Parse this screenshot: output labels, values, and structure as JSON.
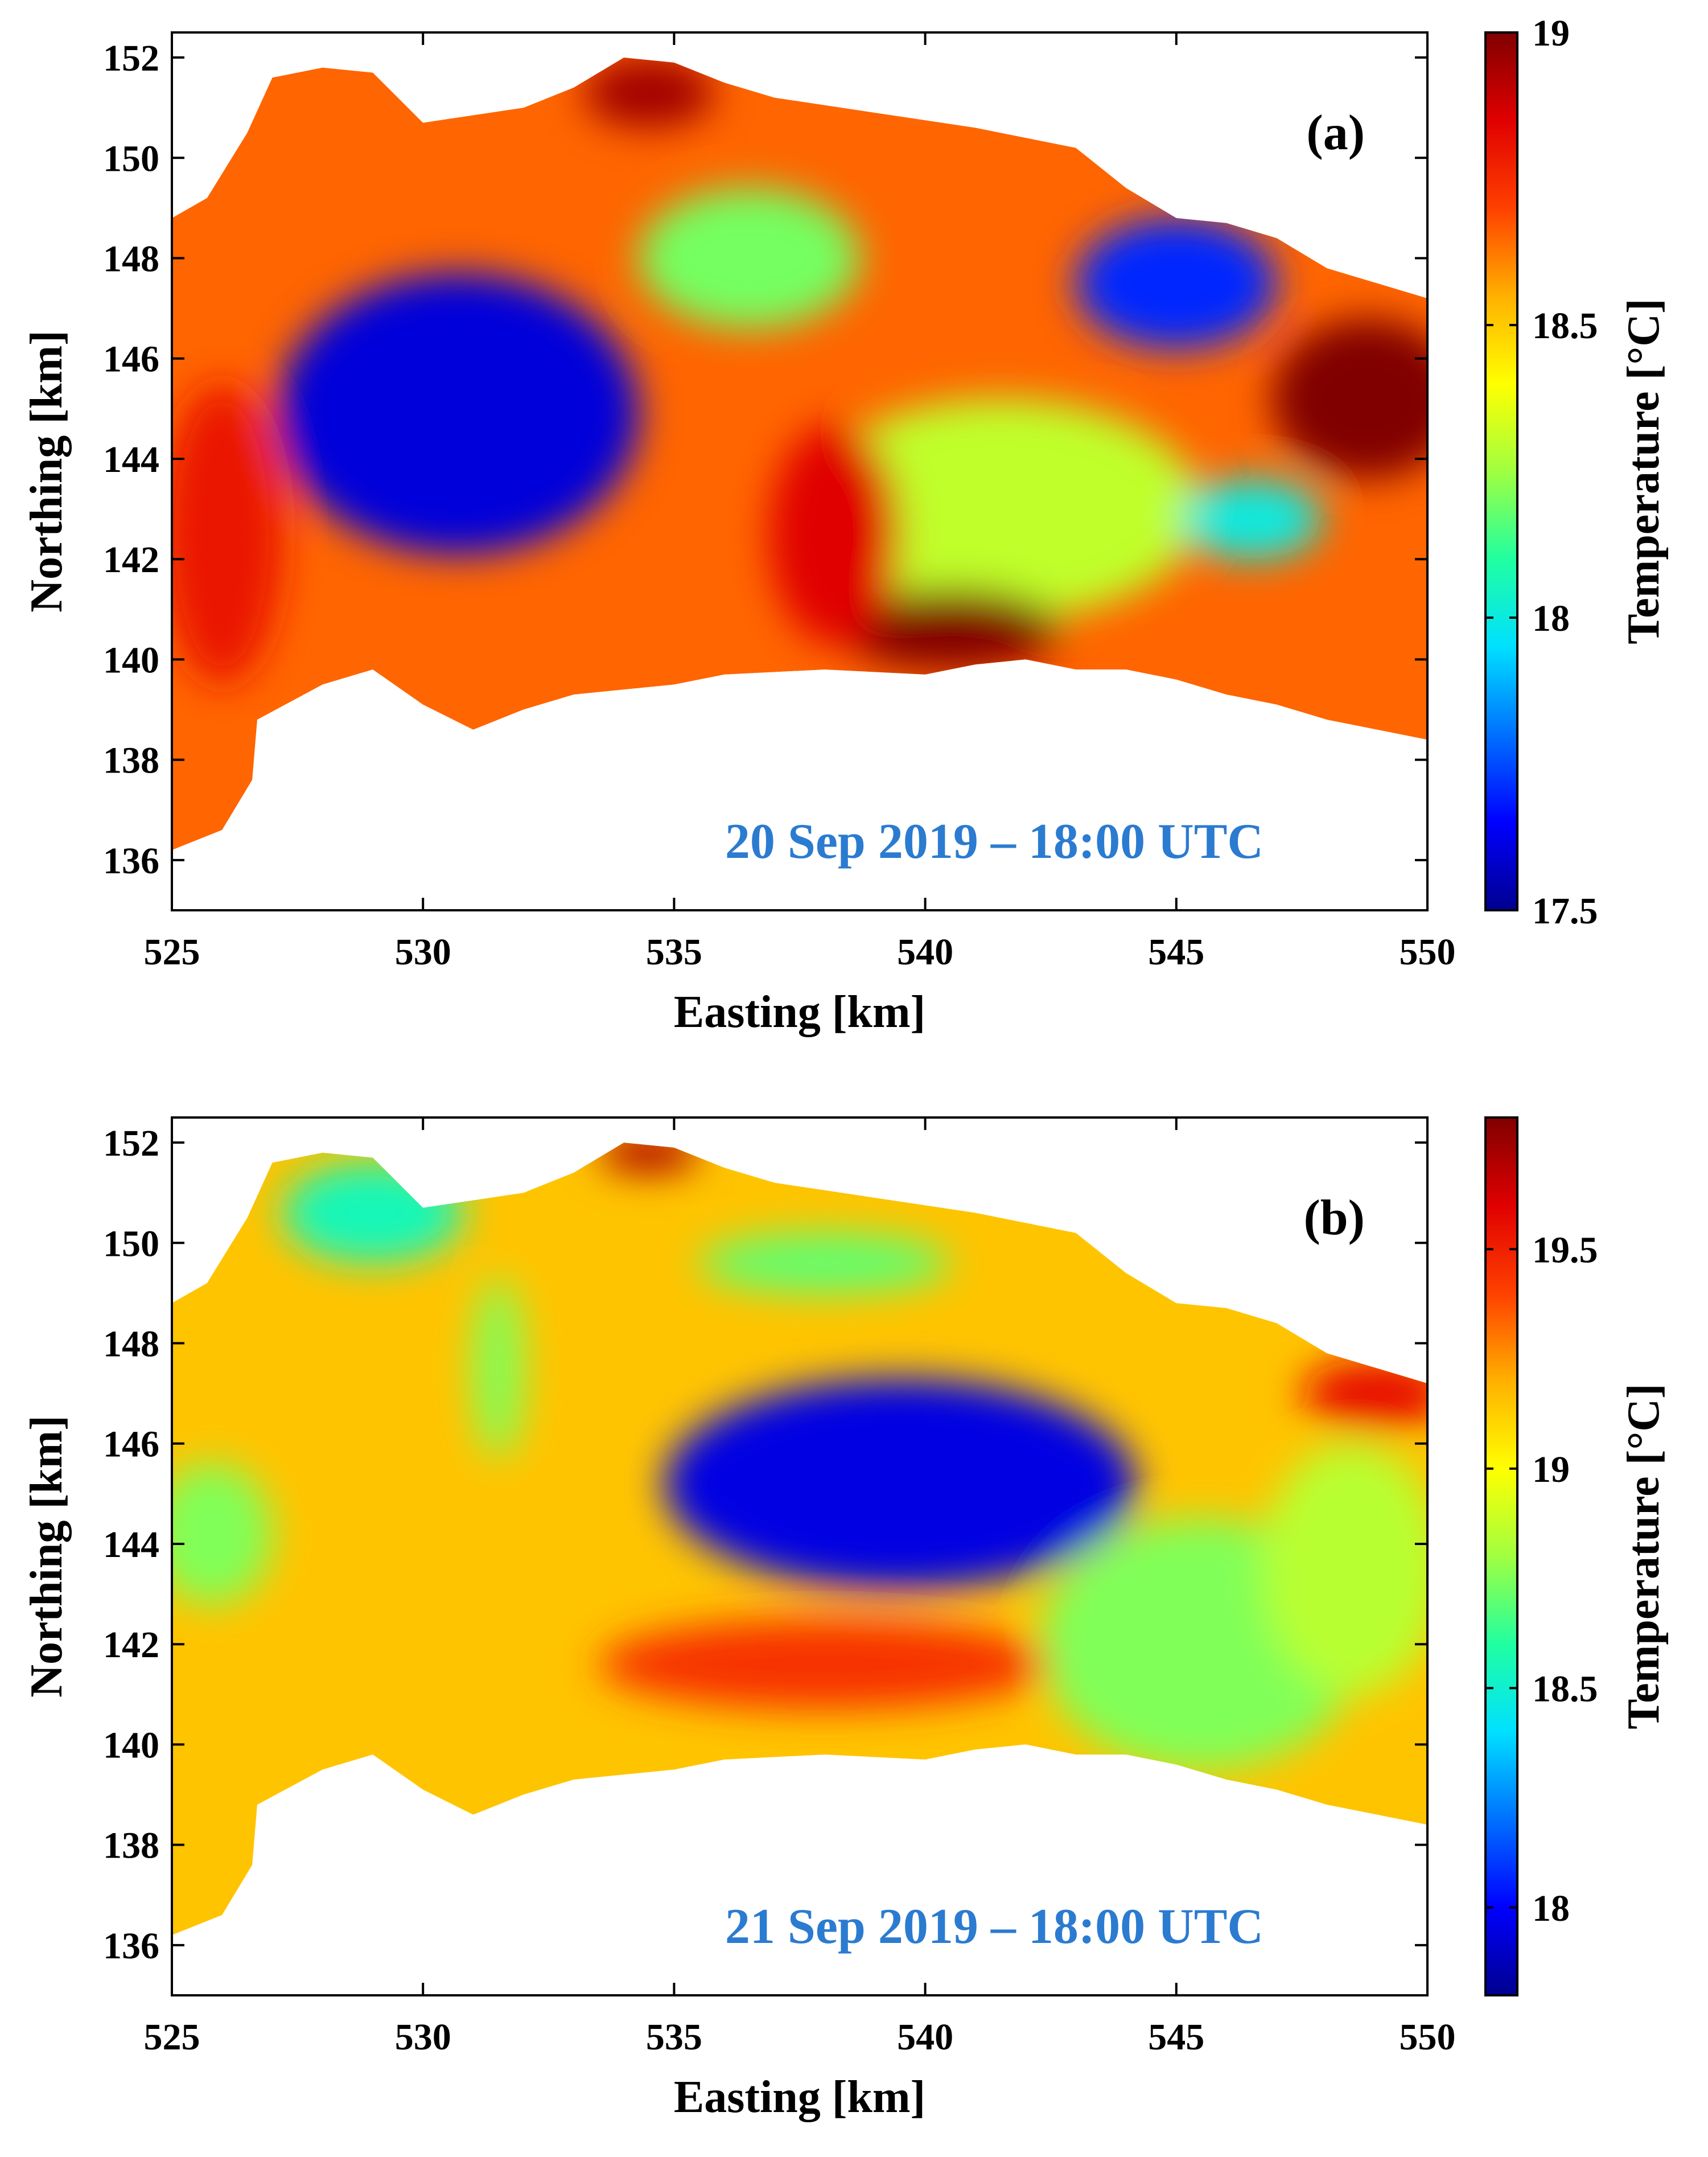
{
  "figure": {
    "background": "#ffffff"
  },
  "colormap": [
    "#00008f",
    "#0000ff",
    "#0070ff",
    "#00e0ff",
    "#20ffa0",
    "#a0ff40",
    "#ffff00",
    "#ffb000",
    "#ff4000",
    "#e00000",
    "#800000"
  ],
  "chart_data": [
    {
      "type": "heatmap",
      "panel_label": "(a)",
      "timestamp": "20 Sep 2019 – 18:00 UTC",
      "timestamp_color": "#2b7bd0",
      "xlabel": "Easting [km]",
      "ylabel": "Northing [km]",
      "colorbar_label": "Temperature [°C]",
      "xlim": [
        525,
        550
      ],
      "ylim": [
        135,
        152.5
      ],
      "xticks": [
        525,
        530,
        535,
        540,
        545,
        550
      ],
      "yticks": [
        136,
        138,
        140,
        142,
        144,
        146,
        148,
        150,
        152
      ],
      "clim": [
        17.5,
        19
      ],
      "cticks": [
        17.5,
        18,
        18.5,
        19
      ],
      "cticklabels": [
        "17.5",
        "18",
        "18.5",
        "19"
      ],
      "domain_outline": [
        [
          525,
          136.2
        ],
        [
          526,
          136.6
        ],
        [
          526.6,
          137.6
        ],
        [
          526.7,
          138.8
        ],
        [
          528,
          139.5
        ],
        [
          529,
          139.8
        ],
        [
          530,
          139.1
        ],
        [
          531,
          138.6
        ],
        [
          532,
          139
        ],
        [
          533,
          139.3
        ],
        [
          535,
          139.5
        ],
        [
          536,
          139.7
        ],
        [
          538,
          139.8
        ],
        [
          540,
          139.7
        ],
        [
          541,
          139.9
        ],
        [
          542,
          140
        ],
        [
          543,
          139.8
        ],
        [
          544,
          139.8
        ],
        [
          545,
          139.6
        ],
        [
          546,
          139.3
        ],
        [
          547,
          139.1
        ],
        [
          548,
          138.8
        ],
        [
          549,
          138.6
        ],
        [
          550,
          138.4
        ],
        [
          550,
          147.2
        ],
        [
          548,
          147.8
        ],
        [
          547,
          148.4
        ],
        [
          546,
          148.7
        ],
        [
          545,
          148.8
        ],
        [
          544,
          149.4
        ],
        [
          543,
          150.2
        ],
        [
          541,
          150.6
        ],
        [
          539,
          150.9
        ],
        [
          537,
          151.2
        ],
        [
          536,
          151.5
        ],
        [
          535,
          151.9
        ],
        [
          534,
          152
        ],
        [
          533,
          151.4
        ],
        [
          532,
          151
        ],
        [
          530,
          150.7
        ],
        [
          529.5,
          151.2
        ],
        [
          529,
          151.7
        ],
        [
          528,
          151.8
        ],
        [
          527,
          151.6
        ],
        [
          526.5,
          150.5
        ],
        [
          525.7,
          149.2
        ],
        [
          525,
          148.8
        ]
      ],
      "background_value": 18.65,
      "features": [
        {
          "x": 530.7,
          "y": 144.9,
          "rx": 3.6,
          "ry": 2.8,
          "value": 17.6
        },
        {
          "x": 536.5,
          "y": 148,
          "rx": 2.2,
          "ry": 1.4,
          "value": 18.2
        },
        {
          "x": 541.5,
          "y": 143,
          "rx": 4,
          "ry": 2.2,
          "value": 18.3
        },
        {
          "x": 545,
          "y": 147.5,
          "rx": 2,
          "ry": 1.3,
          "value": 17.7
        },
        {
          "x": 548.8,
          "y": 145.2,
          "rx": 1.9,
          "ry": 1.6,
          "value": 19
        },
        {
          "x": 540.5,
          "y": 140.6,
          "rx": 2.2,
          "ry": 0.8,
          "value": 19
        },
        {
          "x": 534.5,
          "y": 151.3,
          "rx": 1.3,
          "ry": 0.7,
          "value": 18.95
        },
        {
          "x": 538.2,
          "y": 142.5,
          "rx": 1.3,
          "ry": 2.2,
          "value": 18.85
        },
        {
          "x": 526,
          "y": 142.5,
          "rx": 1.2,
          "ry": 3,
          "value": 18.8
        },
        {
          "x": 546.5,
          "y": 142.8,
          "rx": 1.4,
          "ry": 0.8,
          "value": 18
        }
      ]
    },
    {
      "type": "heatmap",
      "panel_label": "(b)",
      "timestamp": "21 Sep 2019 – 18:00 UTC",
      "timestamp_color": "#2b7bd0",
      "xlabel": "Easting [km]",
      "ylabel": "Northing [km]",
      "colorbar_label": "Temperature [°C]",
      "xlim": [
        525,
        550
      ],
      "ylim": [
        135,
        152.5
      ],
      "xticks": [
        525,
        530,
        535,
        540,
        545,
        550
      ],
      "yticks": [
        136,
        138,
        140,
        142,
        144,
        146,
        148,
        150,
        152
      ],
      "clim": [
        17.8,
        19.8
      ],
      "cticks": [
        18,
        18.5,
        19,
        19.5
      ],
      "cticklabels": [
        "18",
        "18.5",
        "19",
        "19.5"
      ],
      "domain_outline": [
        [
          525,
          136.2
        ],
        [
          526,
          136.6
        ],
        [
          526.6,
          137.6
        ],
        [
          526.7,
          138.8
        ],
        [
          528,
          139.5
        ],
        [
          529,
          139.8
        ],
        [
          530,
          139.1
        ],
        [
          531,
          138.6
        ],
        [
          532,
          139
        ],
        [
          533,
          139.3
        ],
        [
          535,
          139.5
        ],
        [
          536,
          139.7
        ],
        [
          538,
          139.8
        ],
        [
          540,
          139.7
        ],
        [
          541,
          139.9
        ],
        [
          542,
          140
        ],
        [
          543,
          139.8
        ],
        [
          544,
          139.8
        ],
        [
          545,
          139.6
        ],
        [
          546,
          139.3
        ],
        [
          547,
          139.1
        ],
        [
          548,
          138.8
        ],
        [
          549,
          138.6
        ],
        [
          550,
          138.4
        ],
        [
          550,
          147.2
        ],
        [
          548,
          147.8
        ],
        [
          547,
          148.4
        ],
        [
          546,
          148.7
        ],
        [
          545,
          148.8
        ],
        [
          544,
          149.4
        ],
        [
          543,
          150.2
        ],
        [
          541,
          150.6
        ],
        [
          539,
          150.9
        ],
        [
          537,
          151.2
        ],
        [
          536,
          151.5
        ],
        [
          535,
          151.9
        ],
        [
          534,
          152
        ],
        [
          533,
          151.4
        ],
        [
          532,
          151
        ],
        [
          530,
          150.7
        ],
        [
          529.5,
          151.2
        ],
        [
          529,
          151.7
        ],
        [
          528,
          151.8
        ],
        [
          527,
          151.6
        ],
        [
          526.5,
          150.5
        ],
        [
          525.7,
          149.2
        ],
        [
          525,
          148.8
        ]
      ],
      "background_value": 19.15,
      "features": [
        {
          "x": 539.5,
          "y": 145.2,
          "rx": 4.7,
          "ry": 2.1,
          "value": 17.95
        },
        {
          "x": 529,
          "y": 150.6,
          "rx": 1.8,
          "ry": 1,
          "value": 18.55
        },
        {
          "x": 525.8,
          "y": 144.2,
          "rx": 1.2,
          "ry": 1.4,
          "value": 18.75
        },
        {
          "x": 538,
          "y": 149.6,
          "rx": 2.5,
          "ry": 0.6,
          "value": 18.7
        },
        {
          "x": 545.5,
          "y": 142,
          "rx": 3.2,
          "ry": 2.5,
          "value": 18.75
        },
        {
          "x": 548.5,
          "y": 143.5,
          "rx": 1.8,
          "ry": 2.5,
          "value": 18.85
        },
        {
          "x": 538,
          "y": 141.6,
          "rx": 4.5,
          "ry": 0.9,
          "value": 19.45
        },
        {
          "x": 549,
          "y": 147,
          "rx": 1.5,
          "ry": 0.7,
          "value": 19.55
        },
        {
          "x": 534.5,
          "y": 151.8,
          "rx": 1,
          "ry": 0.4,
          "value": 19.7
        },
        {
          "x": 531.5,
          "y": 147.5,
          "rx": 0.5,
          "ry": 1.8,
          "value": 18.75
        }
      ]
    }
  ]
}
